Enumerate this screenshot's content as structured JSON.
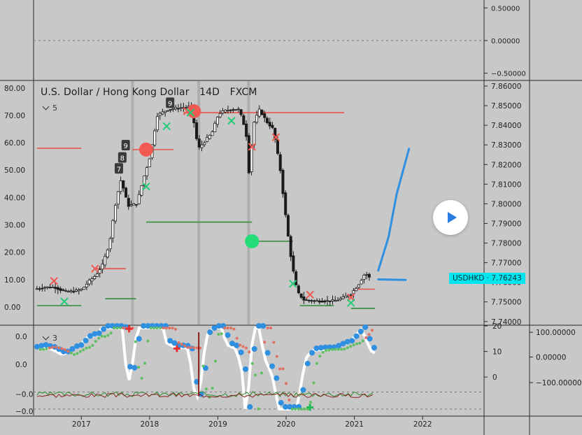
{
  "header": {
    "pair": "U.S. Dollar / Hong Kong Dollar",
    "interval": "14D",
    "source": "FXCM"
  },
  "indicator_pane_counts": {
    "main": "5",
    "lower": "3"
  },
  "price_tag": {
    "symbol": "USDHKD",
    "sep": "·",
    "value": "7.76243"
  },
  "colors": {
    "background": "#c8c8c8",
    "line_red": "#e8524a",
    "line_green": "#2e8b3a",
    "ma_blue": "#2f8fe0",
    "cursor_blue": "#2a7de1",
    "tag": "#00e5ee"
  },
  "chart_data": [
    {
      "type": "line",
      "pane": "top-oscillator",
      "right_axis_ticks": [
        "0.50000",
        "0.00000",
        "−0.50000"
      ],
      "ylim": [
        -0.6,
        0.6
      ],
      "reference_lines": [
        0
      ]
    },
    {
      "type": "candlestick",
      "pane": "main",
      "title": "U.S. Dollar / Hong Kong Dollar",
      "left_axis_ticks": [
        "80.00",
        "70.00",
        "60.00",
        "50.00",
        "40.00",
        "30.00",
        "20.00",
        "10.00",
        "0.00"
      ],
      "right_axis_ticks": [
        "7.86000",
        "7.85000",
        "7.84000",
        "7.83000",
        "7.82000",
        "7.81000",
        "7.80000",
        "7.79000",
        "7.78000",
        "7.77000",
        "7.76000",
        "7.75000",
        "7.74000"
      ],
      "left_ylim": [
        -6.4,
        82.5
      ],
      "right_ylim": [
        7.7385,
        7.8625
      ],
      "x_ticks": [
        "2017",
        "2018",
        "2019",
        "2020",
        "2021",
        "2022"
      ],
      "x_range": [
        2016.3,
        2022.9
      ],
      "last_price": 7.76243,
      "price_path": [
        [
          2016.35,
          7.7565
        ],
        [
          2016.5,
          7.7575
        ],
        [
          2016.65,
          7.7575
        ],
        [
          2016.8,
          7.7552
        ],
        [
          2016.95,
          7.7555
        ],
        [
          2017.05,
          7.7565
        ],
        [
          2017.15,
          7.7605
        ],
        [
          2017.25,
          7.7635
        ],
        [
          2017.35,
          7.769
        ],
        [
          2017.45,
          7.78
        ],
        [
          2017.55,
          7.8025
        ],
        [
          2017.62,
          7.8125
        ],
        [
          2017.72,
          7.799
        ],
        [
          2017.85,
          7.8
        ],
        [
          2017.95,
          7.813
        ],
        [
          2018.05,
          7.825
        ],
        [
          2018.15,
          7.845
        ],
        [
          2018.3,
          7.848
        ],
        [
          2018.5,
          7.849
        ],
        [
          2018.65,
          7.8495
        ],
        [
          2018.75,
          7.828
        ],
        [
          2018.85,
          7.832
        ],
        [
          2018.95,
          7.836
        ],
        [
          2019.05,
          7.846
        ],
        [
          2019.2,
          7.848
        ],
        [
          2019.35,
          7.848
        ],
        [
          2019.45,
          7.837
        ],
        [
          2019.5,
          7.813
        ],
        [
          2019.55,
          7.84
        ],
        [
          2019.65,
          7.848
        ],
        [
          2019.75,
          7.842
        ],
        [
          2019.85,
          7.838
        ],
        [
          2019.95,
          7.818
        ],
        [
          2020.05,
          7.788
        ],
        [
          2020.12,
          7.77
        ],
        [
          2020.2,
          7.755
        ],
        [
          2020.3,
          7.751
        ],
        [
          2020.45,
          7.7505
        ],
        [
          2020.6,
          7.7505
        ],
        [
          2020.75,
          7.7505
        ],
        [
          2020.9,
          7.7525
        ],
        [
          2021.0,
          7.7545
        ],
        [
          2021.1,
          7.759
        ],
        [
          2021.2,
          7.765
        ],
        [
          2021.25,
          7.7624
        ]
      ],
      "horizontal_levels": [
        {
          "color": "red",
          "from": 2016.35,
          "to": 2017.0,
          "left_value": 58.0
        },
        {
          "color": "green",
          "from": 2016.35,
          "to": 2017.0,
          "left_value": 0.5
        },
        {
          "color": "red",
          "from": 2017.2,
          "to": 2017.65,
          "left_value": 14.0
        },
        {
          "color": "green",
          "from": 2017.35,
          "to": 2017.8,
          "left_value": 3.0
        },
        {
          "color": "red",
          "from": 2017.75,
          "to": 2018.35,
          "left_value": 57.5
        },
        {
          "color": "green",
          "from": 2017.95,
          "to": 2019.5,
          "left_value": 31.0
        },
        {
          "color": "red",
          "from": 2018.5,
          "to": 2020.85,
          "left_value": 71.0
        },
        {
          "color": "green",
          "from": 2019.45,
          "to": 2020.1,
          "left_value": 24.0
        },
        {
          "color": "green",
          "from": 2020.2,
          "to": 2020.7,
          "left_value": 0.5
        },
        {
          "color": "red",
          "from": 2021.0,
          "to": 2021.3,
          "left_value": 6.5
        },
        {
          "color": "green",
          "from": 2020.95,
          "to": 2021.3,
          "left_value": -0.5
        }
      ],
      "signal_dots": [
        {
          "color": "red",
          "x": 2017.95,
          "left_value": 57.5
        },
        {
          "color": "red",
          "x": 2018.65,
          "left_value": 71.5
        },
        {
          "color": "green",
          "x": 2019.5,
          "left_value": 24.0
        }
      ],
      "x_markers_red": [
        [
          2016.6,
          9.5
        ],
        [
          2017.2,
          14.0
        ],
        [
          2018.55,
          71.5
        ],
        [
          2019.5,
          58.5
        ],
        [
          2019.85,
          62.0
        ],
        [
          2020.35,
          4.5
        ],
        [
          2020.95,
          3.5
        ]
      ],
      "x_markers_green": [
        [
          2016.75,
          2.0
        ],
        [
          2017.95,
          44.0
        ],
        [
          2018.25,
          66.0
        ],
        [
          2018.6,
          71.0
        ],
        [
          2019.2,
          68.0
        ],
        [
          2020.1,
          8.5
        ],
        [
          2020.95,
          1.5
        ]
      ],
      "count_badges": [
        {
          "label": "7",
          "x": 2017.55,
          "left_value": 50.5
        },
        {
          "label": "8",
          "x": 2017.6,
          "left_value": 54.5
        },
        {
          "label": "9",
          "x": 2017.65,
          "left_value": 59.0
        },
        {
          "label": "9",
          "x": 2018.3,
          "left_value": 74.5
        }
      ],
      "projection_path": [
        [
          2021.35,
          7.7615
        ],
        [
          2021.75,
          7.7612
        ]
      ],
      "projection_up_path": [
        [
          2021.35,
          7.766
        ],
        [
          2021.5,
          7.783
        ],
        [
          2021.62,
          7.805
        ],
        [
          2021.8,
          7.828
        ]
      ],
      "vertical_bands": [
        2017.75,
        2018.72,
        2019.45
      ]
    },
    {
      "type": "line",
      "pane": "lower-oscillator",
      "left_axis_ticks": [
        "0.0",
        "0.0",
        "−0.0",
        "−0.0"
      ],
      "mid_axis_ticks": [
        "20",
        "10",
        "0"
      ],
      "right_axis_ticks": [
        "100.00000",
        "0.00000",
        "−100.00000"
      ],
      "markers_plus_red": [
        [
          2017.7,
          0.48
        ],
        [
          2018.4,
          0.02
        ]
      ],
      "markers_plus_green": [
        [
          2020.35,
          -1.36
        ]
      ]
    }
  ]
}
